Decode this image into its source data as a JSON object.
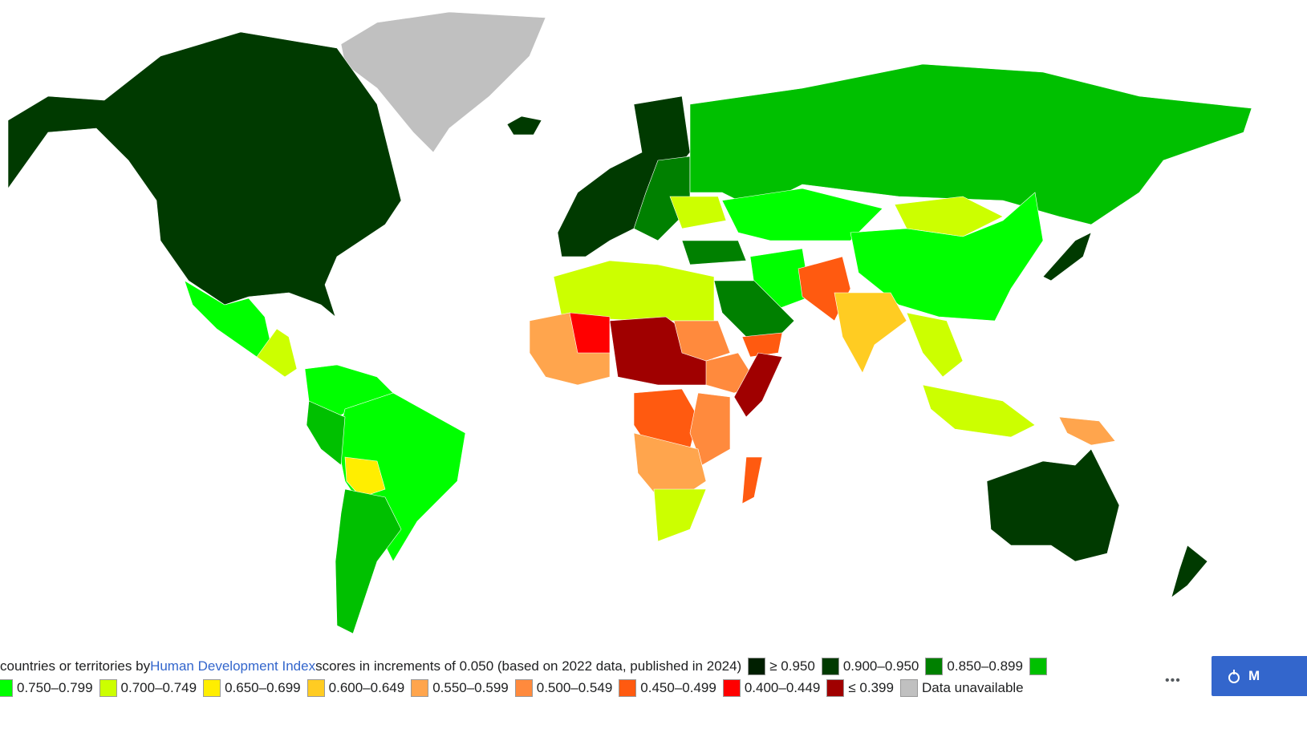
{
  "legend": {
    "caption_before": "countries or territories by ",
    "link_text": "Human Development Index",
    "caption_after": " scores in increments of 0.050 (based on 2022 data, published in 2024)",
    "items": [
      {
        "label": "≥ 0.950",
        "color": "#001f00"
      },
      {
        "label": "0.900–0.950",
        "color": "#003a00"
      },
      {
        "label": "0.850–0.899",
        "color": "#008000"
      },
      {
        "color": "#00c000"
      },
      {
        "label": "0.750–0.799",
        "color": "#00ff00"
      },
      {
        "label": "0.700–0.749",
        "color": "#ccff00"
      },
      {
        "label": "0.650–0.699",
        "color": "#ffee00"
      },
      {
        "label": "0.600–0.649",
        "color": "#ffcc22"
      },
      {
        "label": "0.550–0.599",
        "color": "#ffa54d"
      },
      {
        "label": "0.500–0.549",
        "color": "#ff8a3d"
      },
      {
        "label": "0.450–0.499",
        "color": "#ff5a10"
      },
      {
        "label": "0.400–0.449",
        "color": "#ff0000"
      },
      {
        "label": "≤ 0.399",
        "color": "#a00000"
      },
      {
        "label": "Data unavailable",
        "color": "#c0c0c0"
      }
    ]
  },
  "more": "•••",
  "button": "M"
}
